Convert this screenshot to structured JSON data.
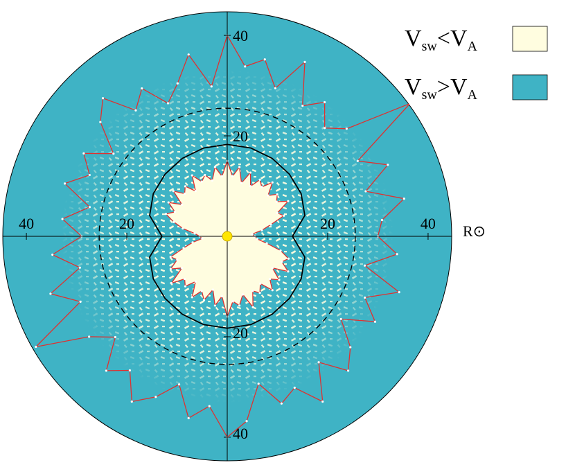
{
  "chart_data": {
    "type": "polar",
    "axis_label": "R⊙",
    "rlim": [
      0,
      44.7
    ],
    "rticks": [
      20,
      40
    ],
    "background_color": "#3fb3c5",
    "legend": [
      {
        "label_parts": [
          "V",
          "sw",
          "<V",
          "A"
        ],
        "color": "#fffde0"
      },
      {
        "label_parts": [
          "V",
          "sw",
          ">V",
          "A"
        ],
        "color": "#3fb3c5"
      }
    ],
    "reference_circles": [
      {
        "r": 25.5,
        "dashed": true,
        "color": "#000000"
      }
    ],
    "series": [
      {
        "color": "#e0302f",
        "fill": "#fffde0",
        "marker_color": "#ffffff",
        "theta": [
          0,
          5,
          10,
          15,
          20,
          25,
          30,
          35,
          40,
          45,
          50,
          55,
          60,
          65,
          70,
          75,
          80,
          85,
          90,
          95,
          100,
          105,
          110,
          115,
          120,
          125,
          130,
          135,
          140,
          145,
          150,
          155,
          160,
          165,
          170,
          175,
          180,
          185,
          190,
          195,
          200,
          205,
          210,
          215,
          220,
          225,
          230,
          235,
          240,
          245,
          250,
          255,
          260,
          265,
          270,
          275,
          280,
          285,
          290,
          295,
          300,
          305,
          310,
          315,
          320,
          325,
          330,
          335,
          340,
          345,
          350,
          355
        ],
        "values": [
          15,
          12,
          14,
          11,
          13.5,
          11,
          13,
          12,
          14,
          11.5,
          13,
          12,
          14,
          11,
          12,
          9,
          7,
          5,
          5.5,
          6,
          8,
          11,
          13,
          12,
          14,
          11,
          13.5,
          12,
          14,
          11.5,
          13,
          12,
          15,
          12,
          14,
          13,
          16,
          12,
          14,
          11,
          13.5,
          12,
          14,
          11,
          13,
          12,
          14.5,
          11,
          13,
          11,
          12,
          9,
          7,
          5,
          5.5,
          6.5,
          9,
          11,
          13,
          11.5,
          13.5,
          11,
          14,
          12,
          13,
          11,
          14,
          12,
          13,
          11.5,
          14,
          12
        ]
      },
      {
        "color": "#000000",
        "theta": [
          0,
          15,
          30,
          45,
          60,
          75,
          90,
          105,
          120,
          135,
          150,
          165,
          180,
          195,
          210,
          225,
          240,
          255,
          270,
          285,
          300,
          315,
          330,
          345
        ],
        "values": [
          18.3,
          18.2,
          17.9,
          17.5,
          17,
          16,
          13,
          16,
          17,
          17.5,
          17.9,
          18.2,
          18.3,
          18.2,
          17.9,
          17.5,
          17,
          16,
          13,
          16,
          17,
          17.5,
          17.9,
          18.2
        ]
      },
      {
        "color": "#e0302f",
        "marker_color": "#ffffff",
        "theta": [
          0,
          6,
          12,
          18,
          24,
          30,
          36,
          42,
          48,
          54,
          60,
          66,
          72,
          78,
          84,
          90,
          96,
          102,
          108,
          114,
          120,
          126,
          132,
          138,
          144,
          150,
          156,
          162,
          168,
          174,
          180,
          186,
          192,
          198,
          204,
          210,
          216,
          222,
          228,
          234,
          240,
          246,
          252,
          258,
          264,
          270,
          276,
          282,
          288,
          294,
          300,
          306,
          312,
          318,
          324,
          330,
          336,
          342,
          348,
          354
        ],
        "values": [
          40,
          34,
          36,
          31,
          38,
          30,
          33,
          29,
          32,
          45,
          30,
          35,
          29,
          36,
          31,
          30,
          34,
          28,
          36,
          30,
          34,
          28,
          33,
          36,
          31,
          38,
          33,
          35,
          30,
          37,
          40,
          34,
          37,
          31,
          35,
          38,
          33,
          36,
          30,
          34,
          44,
          32,
          37,
          30,
          35,
          29,
          33,
          28,
          34,
          30,
          33,
          28,
          34,
          37,
          31,
          34,
          29,
          32,
          37,
          30
        ]
      }
    ]
  }
}
